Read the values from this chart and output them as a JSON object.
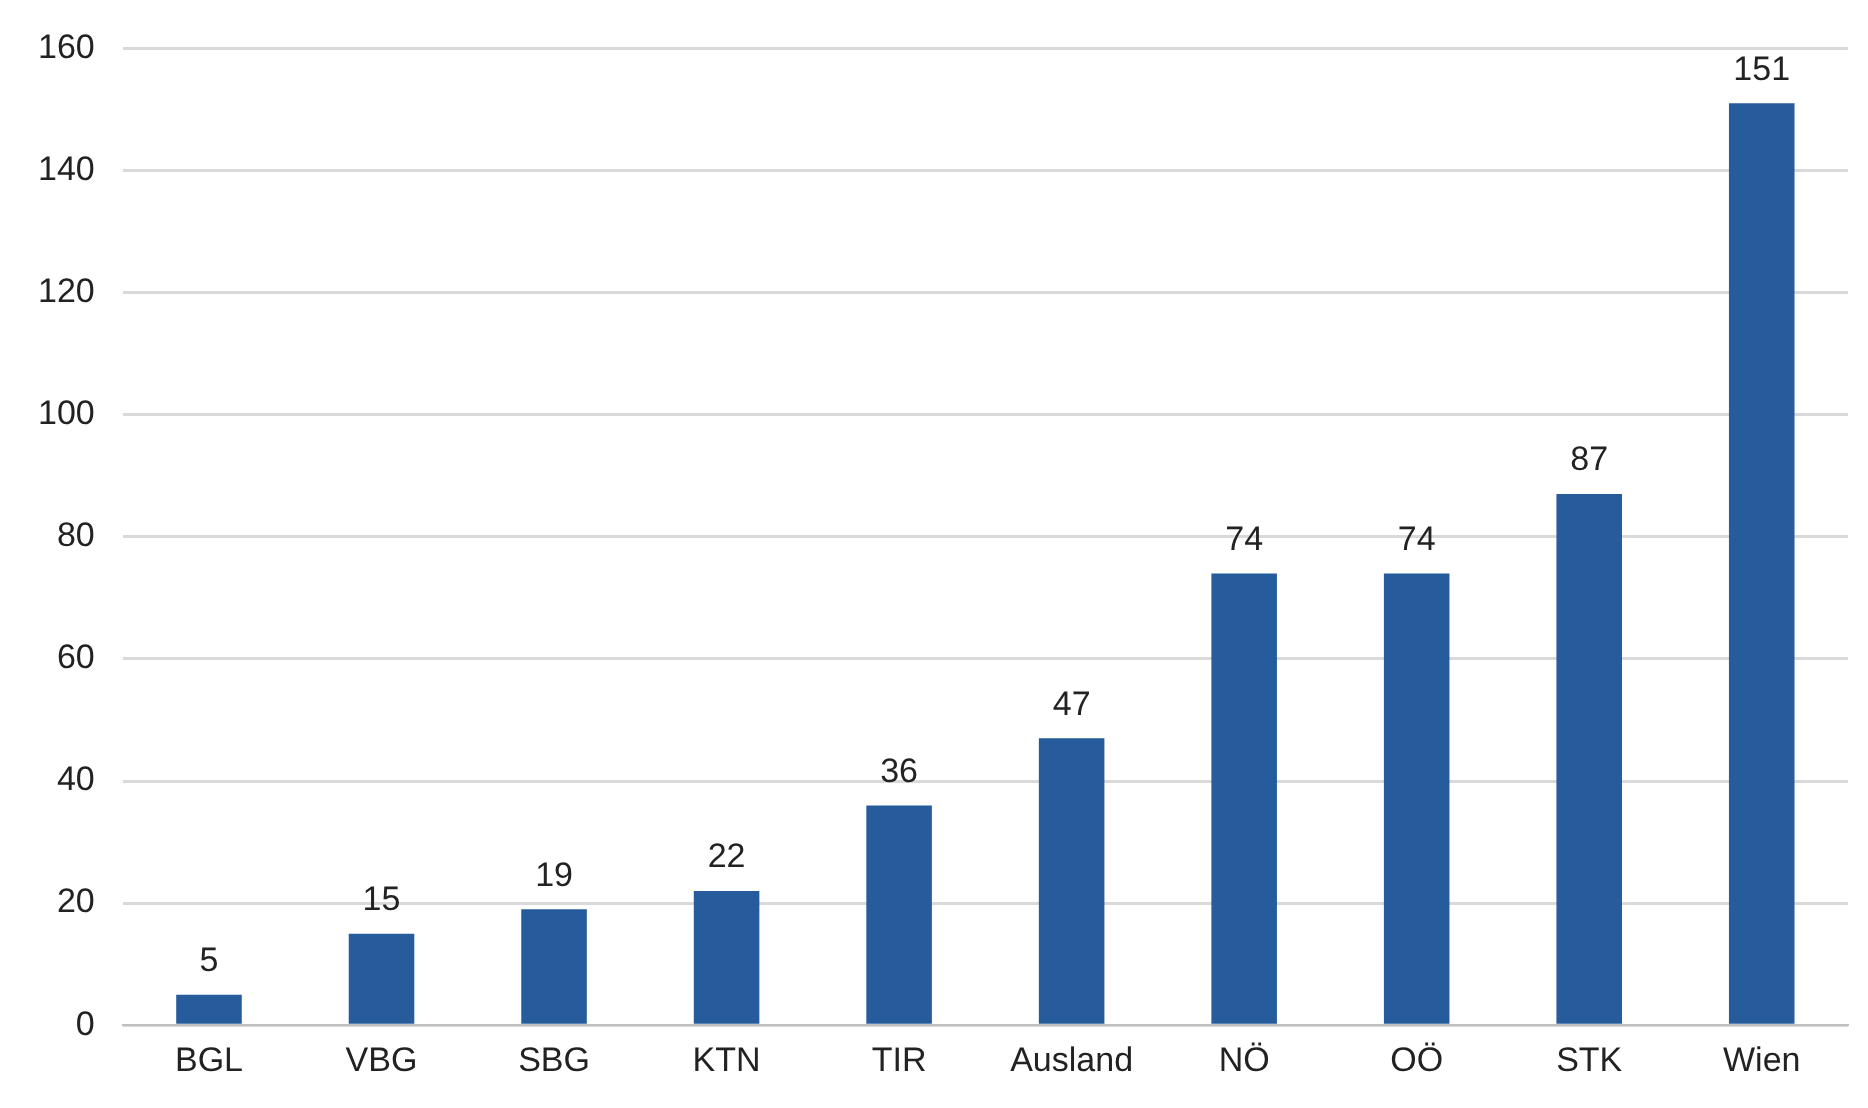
{
  "chart_data": {
    "type": "bar",
    "categories": [
      "BGL",
      "VBG",
      "SBG",
      "KTN",
      "TIR",
      "Ausland",
      "NÖ",
      "OÖ",
      "STK",
      "Wien"
    ],
    "values": [
      5,
      15,
      19,
      22,
      36,
      47,
      74,
      74,
      87,
      151
    ],
    "color": "#265c9c",
    "ylim": [
      0,
      160
    ],
    "yticks": [
      0,
      20,
      40,
      60,
      80,
      100,
      120,
      140,
      160
    ],
    "grid": "y",
    "data_labels": true,
    "legend": false
  }
}
